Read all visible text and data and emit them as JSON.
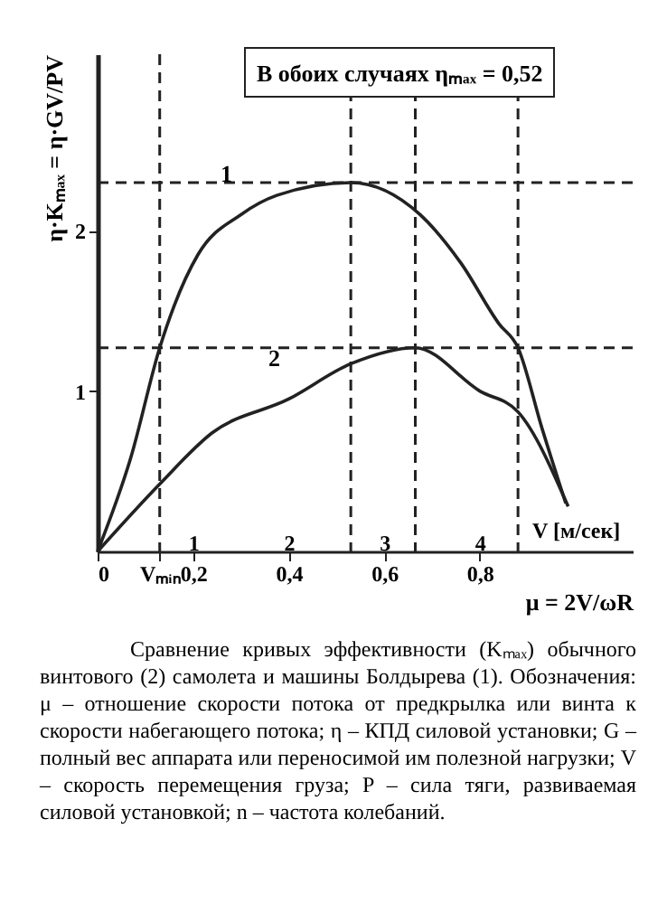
{
  "chart_data": {
    "type": "line",
    "xlabel": "μ = 2V/ωR",
    "ylabel": "η·Kₘₐₓ = η·GV/PV",
    "x2label": "V [м/сек]",
    "annotations": [
      "В обоих случаях ηₘₐₓ = 0,52",
      "Сравнение кривых эффективности (Kₘₐₓ) обычного винтового (2) самолета и машины Болдырева (1). Обозначения: μ – отношение скорости потока от предкрылка или винта к скорости набегающего потока; η – КПД силовой установки; G – полный вес аппарата или переносимой им полезной нагрузки; V – скорость перемещения груза; P – сила тяги, развиваемая силовой установкой; n – частота колебаний."
    ],
    "series": [
      {
        "name": "1",
        "color": "#222222",
        "x": [
          0,
          0.07,
          0.13,
          0.16,
          0.21,
          0.3,
          0.375,
          0.53,
          0.675,
          0.76,
          0.84,
          0.88,
          0.93,
          0.98
        ],
        "values": [
          0,
          0.59,
          1.27,
          1.53,
          1.85,
          2.1,
          2.22,
          2.3,
          2.1,
          1.8,
          1.42,
          1.27,
          0.77,
          0.3
        ]
      },
      {
        "name": "2",
        "color": "#222222",
        "x": [
          0,
          0.13,
          0.24,
          0.4,
          0.53,
          0.665,
          0.8,
          0.88,
          0.985
        ],
        "values": [
          0,
          0.42,
          0.74,
          0.95,
          1.17,
          1.27,
          1.0,
          0.87,
          0.28
        ]
      }
    ],
    "xlim": [
      0,
      1.12
    ],
    "ylim": [
      0,
      3.1
    ],
    "xticks": [
      0,
      {
        "value": 0.13,
        "label": "Vₘᵢₙ"
      },
      {
        "value": 0.2,
        "label": "0,2"
      },
      {
        "value": 0.4,
        "label": "0,4"
      },
      {
        "value": 0.6,
        "label": "0,6"
      },
      {
        "value": 0.8,
        "label": "0,8"
      }
    ],
    "yticks": [
      1,
      2
    ],
    "x2lim": [
      0,
      5.6
    ],
    "x2ticks": [
      1,
      2,
      3,
      4
    ],
    "ref_lines": [
      {
        "axis": "y",
        "value": 2.3,
        "line_style": "dashed"
      },
      {
        "axis": "y",
        "value": 1.27,
        "line_style": "dashed"
      },
      {
        "axis": "x",
        "value": 0.13,
        "line_style": "dashed"
      },
      {
        "axis": "x",
        "value": 0.53,
        "line_style": "dashed"
      },
      {
        "axis": "x",
        "value": 0.665,
        "line_style": "dashed"
      },
      {
        "axis": "x",
        "value": 0.88,
        "line_style": "dashed"
      }
    ],
    "grid": false,
    "legend": false,
    "marker": "none",
    "line_style": "solid"
  }
}
